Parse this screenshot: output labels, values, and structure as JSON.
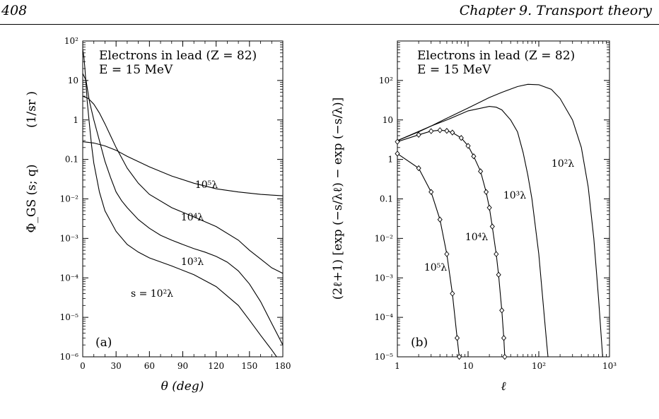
{
  "header": {
    "page_number": "408",
    "chapter": "Chapter 9.  Transport theory"
  },
  "chart_data": [
    {
      "type": "line",
      "panel": "(a)",
      "annotation": [
        "Electrons in lead (Z = 82)",
        "E = 15 MeV"
      ],
      "xlabel": "θ  (deg)",
      "ylabel": "Φ_GS (s; q)",
      "yunit": "(1/sr )",
      "xlim": [
        0,
        180
      ],
      "ylim": [
        1e-06,
        100
      ],
      "yscale": "log",
      "xticks": [
        0,
        30,
        60,
        90,
        120,
        150,
        180
      ],
      "xtick_labels": [
        "0",
        "30",
        "60",
        "90",
        "120",
        "150",
        "180"
      ],
      "yticks": [
        1e-06,
        1e-05,
        0.0001,
        0.001,
        0.01,
        0.1,
        1,
        10,
        100
      ],
      "ytick_labels": [
        "10⁻⁶",
        "10⁻⁵",
        "10⁻⁴",
        "10⁻³",
        "10⁻²",
        "0.1",
        "1",
        "10",
        "10²"
      ],
      "series": [
        {
          "label": "s = 10²λ",
          "x": [
            0,
            1,
            2,
            3,
            4,
            6,
            8,
            10,
            15,
            20,
            30,
            40,
            50,
            60,
            80,
            100,
            120,
            140,
            150,
            160,
            170,
            180
          ],
          "y": [
            60,
            40,
            20,
            8,
            3,
            0.8,
            0.22,
            0.08,
            0.015,
            0.005,
            0.0015,
            0.0007,
            0.00045,
            0.00032,
            0.0002,
            0.00012,
            6e-05,
            2e-05,
            8.5e-06,
            3.5e-06,
            1.5e-06,
            6e-07
          ]
        },
        {
          "label": "10³λ",
          "x": [
            0,
            3,
            6,
            10,
            15,
            20,
            25,
            30,
            35,
            40,
            50,
            60,
            70,
            80,
            90,
            100,
            110,
            120,
            130,
            140,
            150,
            160,
            170,
            180
          ],
          "y": [
            15,
            10,
            3,
            1,
            0.3,
            0.09,
            0.035,
            0.015,
            0.009,
            0.006,
            0.003,
            0.0018,
            0.0012,
            0.0009,
            0.0007,
            0.00055,
            0.00045,
            0.00035,
            0.00025,
            0.00015,
            7e-05,
            2.5e-05,
            7e-06,
            2e-06
          ]
        },
        {
          "label": "10⁴λ",
          "x": [
            0,
            5,
            10,
            15,
            20,
            25,
            30,
            40,
            50,
            60,
            80,
            100,
            120,
            140,
            150,
            160,
            170,
            180
          ],
          "y": [
            4,
            3.5,
            2.5,
            1.5,
            0.8,
            0.4,
            0.2,
            0.06,
            0.025,
            0.013,
            0.006,
            0.0035,
            0.002,
            0.0009,
            0.0005,
            0.0003,
            0.00018,
            0.00013
          ]
        },
        {
          "label": "10⁵λ",
          "x": [
            0,
            10,
            20,
            30,
            40,
            60,
            80,
            100,
            120,
            140,
            160,
            180
          ],
          "y": [
            0.28,
            0.26,
            0.22,
            0.17,
            0.12,
            0.065,
            0.038,
            0.025,
            0.018,
            0.015,
            0.013,
            0.012
          ]
        }
      ]
    },
    {
      "type": "line",
      "panel": "(b)",
      "annotation": [
        "Electrons in lead (Z = 82)",
        "E = 15 MeV"
      ],
      "xlabel": "ℓ",
      "ylabel": "(2ℓ+1) [exp (−s/λℓ) − exp (−s/λ)]",
      "xlim": [
        1,
        1000
      ],
      "ylim": [
        1e-05,
        1000
      ],
      "xscale": "log",
      "yscale": "log",
      "xticks": [
        1,
        10,
        100,
        1000
      ],
      "xtick_labels": [
        "1",
        "10",
        "10²",
        "10³"
      ],
      "yticks": [
        1e-05,
        0.0001,
        0.001,
        0.01,
        0.1,
        1,
        10,
        100
      ],
      "ytick_labels": [
        "10⁻⁵",
        "10⁻⁴",
        "10⁻³",
        "10⁻²",
        "0.1",
        "1",
        "10",
        "10²"
      ],
      "series": [
        {
          "label": "10²λ",
          "markers": false,
          "x": [
            1,
            2,
            3,
            5,
            10,
            20,
            30,
            50,
            70,
            100,
            150,
            200,
            300,
            400,
            500,
            600,
            700,
            800
          ],
          "y": [
            3,
            5,
            7,
            11,
            20,
            37,
            50,
            70,
            80,
            78,
            60,
            35,
            10,
            2,
            0.2,
            0.01,
            0.0003,
            1e-05
          ]
        },
        {
          "label": "10³λ",
          "markers": false,
          "x": [
            1,
            3,
            5,
            10,
            20,
            25,
            30,
            40,
            50,
            60,
            70,
            80,
            100,
            120,
            130,
            135
          ],
          "y": [
            3,
            7,
            10,
            17,
            22,
            21,
            18,
            10,
            5,
            1.5,
            0.4,
            0.1,
            0.004,
            0.0001,
            2e-05,
            1e-05
          ]
        },
        {
          "label": "10⁴λ",
          "markers": true,
          "x": [
            1,
            2,
            3,
            4,
            5,
            6,
            8,
            10,
            12,
            15,
            18,
            20,
            22,
            25,
            27,
            30,
            32,
            33
          ],
          "y": [
            2.8,
            4.2,
            5.2,
            5.5,
            5.3,
            4.8,
            3.5,
            2.2,
            1.2,
            0.5,
            0.15,
            0.06,
            0.02,
            0.004,
            0.0012,
            0.00015,
            3e-05,
            1e-05
          ]
        },
        {
          "label": "10⁵λ",
          "markers": true,
          "x": [
            1,
            2,
            3,
            4,
            5,
            6,
            7,
            7.5
          ],
          "y": [
            1.4,
            0.6,
            0.15,
            0.03,
            0.004,
            0.0004,
            3e-05,
            1e-05
          ]
        }
      ]
    }
  ]
}
